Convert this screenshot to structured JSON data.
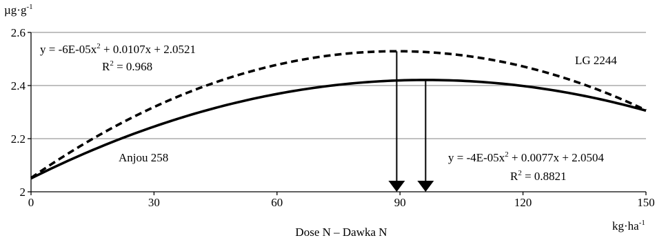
{
  "chart_data": {
    "type": "line",
    "ylabel_unit": "µg·g",
    "ylabel_unit_sup": "-1",
    "xlabel": "Dose N – Dawka N",
    "xunit": "kg·ha",
    "xunit_sup": "-1",
    "xlim": [
      0,
      150
    ],
    "ylim": [
      2.0,
      2.6
    ],
    "x_ticks": [
      0,
      30,
      60,
      90,
      120,
      150
    ],
    "x_tick_labels": [
      "0",
      "30",
      "60",
      "90",
      "120",
      "150"
    ],
    "y_ticks": [
      2.0,
      2.2,
      2.4,
      2.6
    ],
    "y_tick_labels": [
      "2",
      "2.2",
      "2.4",
      "2.6"
    ],
    "grid": "horizontal",
    "series": [
      {
        "name": "LG 2244",
        "style": "dashed",
        "a": -6e-05,
        "b": 0.0107,
        "c": 2.0521,
        "equation_text": "y = -6E-05x",
        "equation_rest": " + 0.0107x + 2.0521",
        "r2_prefix": "R",
        "r2_value_text": " = 0.968",
        "optimum_x": 89.2,
        "optimum_y": 2.529
      },
      {
        "name": "Anjou 258",
        "style": "solid",
        "a": -4e-05,
        "b": 0.0077,
        "c": 2.0504,
        "equation_text": "y = -4E-05x",
        "equation_rest": " + 0.0077x + 2.0504",
        "r2_prefix": "R",
        "r2_value_text": " = 0.8821",
        "optimum_x": 96.25,
        "optimum_y": 2.421
      }
    ]
  }
}
